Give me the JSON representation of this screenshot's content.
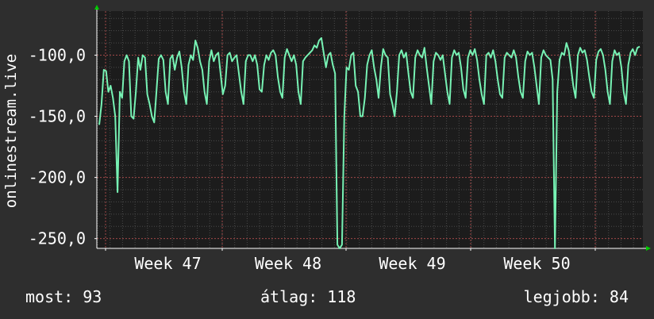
{
  "chart_data": {
    "type": "line",
    "ylabel": "onlinestream.live",
    "y_ticks": [
      "-100,0",
      "-150,0",
      "-200,0",
      "-250,0"
    ],
    "y_tick_values": [
      -100,
      -150,
      -200,
      -250
    ],
    "ylim": [
      -258,
      -64
    ],
    "x_ticks": [
      "Week 47",
      "Week 48",
      "Week 49",
      "Week 50"
    ],
    "grid": true,
    "series": [
      {
        "color": "#77f2b4",
        "values": [
          -157,
          -140,
          -112,
          -113,
          -130,
          -125,
          -135,
          -150,
          -212,
          -130,
          -135,
          -105,
          -100,
          -105,
          -150,
          -152,
          -130,
          -102,
          -112,
          -100,
          -102,
          -132,
          -140,
          -150,
          -155,
          -130,
          -103,
          -100,
          -104,
          -130,
          -140,
          -103,
          -100,
          -112,
          -102,
          -97,
          -110,
          -130,
          -140,
          -108,
          -100,
          -104,
          -88,
          -94,
          -105,
          -112,
          -130,
          -140,
          -105,
          -96,
          -105,
          -100,
          -98,
          -115,
          -132,
          -125,
          -100,
          -98,
          -105,
          -102,
          -100,
          -115,
          -130,
          -140,
          -105,
          -100,
          -100,
          -105,
          -100,
          -108,
          -128,
          -130,
          -108,
          -100,
          -104,
          -98,
          -96,
          -100,
          -118,
          -130,
          -135,
          -102,
          -95,
          -100,
          -105,
          -100,
          -108,
          -130,
          -140,
          -105,
          -102,
          -100,
          -98,
          -96,
          -92,
          -94,
          -88,
          -86,
          -98,
          -110,
          -100,
          -98,
          -108,
          -115,
          -255,
          -258,
          -255,
          -150,
          -110,
          -112,
          -100,
          -98,
          -125,
          -130,
          -150,
          -150,
          -135,
          -108,
          -100,
          -96,
          -110,
          -120,
          -135,
          -110,
          -95,
          -100,
          -102,
          -132,
          -140,
          -150,
          -130,
          -100,
          -96,
          -102,
          -98,
          -115,
          -130,
          -135,
          -102,
          -96,
          -100,
          -102,
          -94,
          -110,
          -125,
          -140,
          -105,
          -98,
          -100,
          -104,
          -100,
          -115,
          -130,
          -140,
          -102,
          -96,
          -100,
          -98,
          -110,
          -128,
          -135,
          -102,
          -96,
          -100,
          -95,
          -104,
          -120,
          -132,
          -140,
          -100,
          -98,
          -102,
          -96,
          -105,
          -120,
          -132,
          -135,
          -102,
          -98,
          -100,
          -102,
          -96,
          -102,
          -118,
          -130,
          -135,
          -105,
          -97,
          -100,
          -98,
          -110,
          -125,
          -140,
          -102,
          -96,
          -100,
          -102,
          -104,
          -120,
          -258,
          -130,
          -104,
          -98,
          -100,
          -90,
          -96,
          -110,
          -125,
          -135,
          -100,
          -94,
          -98,
          -96,
          -104,
          -118,
          -130,
          -135,
          -104,
          -97,
          -95,
          -100,
          -112,
          -130,
          -140,
          -105,
          -96,
          -100,
          -98,
          -110,
          -130,
          -140,
          -108,
          -98,
          -95,
          -100,
          -94,
          -93
        ]
      }
    ],
    "stats": {
      "now": "most: 93",
      "avg": "átlag: 118",
      "best": "legjobb: 84"
    }
  }
}
